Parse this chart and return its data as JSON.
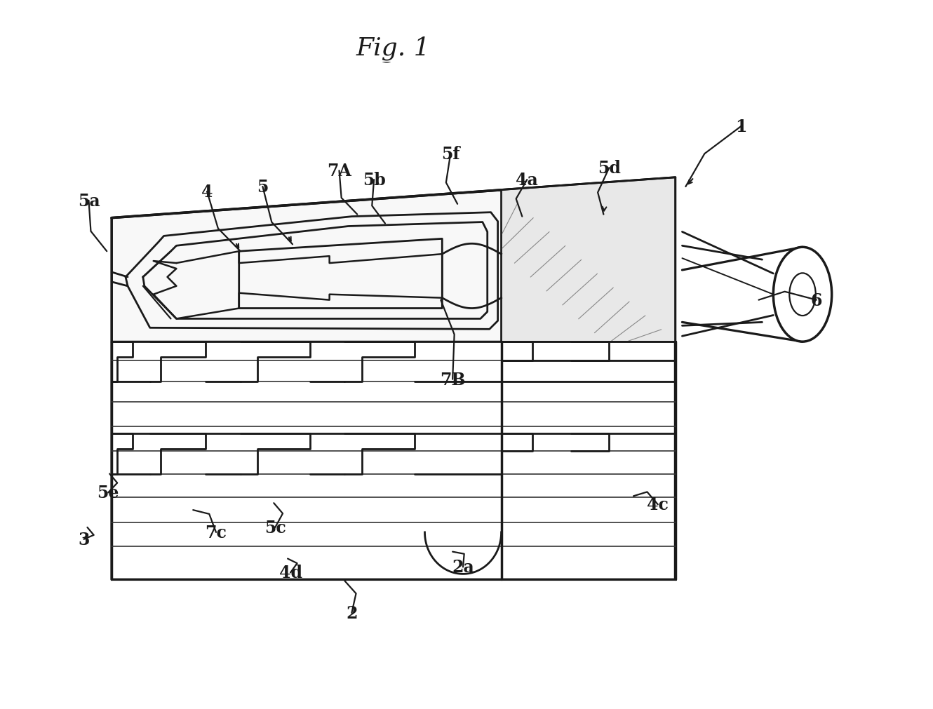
{
  "title": "Fig. 1",
  "bg_color": "#ffffff",
  "line_color": "#1a1a1a",
  "line_width": 2.0,
  "label_fontsize": 17,
  "title_fontsize": 26,
  "labels_info": [
    [
      "1",
      1060,
      178,
      980,
      265,
      true
    ],
    [
      "2",
      500,
      878,
      490,
      832,
      false
    ],
    [
      "2a",
      660,
      812,
      645,
      790,
      false
    ],
    [
      "3",
      115,
      772,
      120,
      755,
      false
    ],
    [
      "4",
      292,
      272,
      340,
      358,
      true
    ],
    [
      "4a",
      752,
      255,
      745,
      308,
      false
    ],
    [
      "4c",
      940,
      722,
      905,
      710,
      false
    ],
    [
      "4d",
      412,
      820,
      408,
      800,
      false
    ],
    [
      "5",
      372,
      265,
      415,
      348,
      true
    ],
    [
      "5a",
      122,
      285,
      148,
      358,
      false
    ],
    [
      "5b",
      532,
      255,
      548,
      318,
      false
    ],
    [
      "5c",
      390,
      755,
      388,
      720,
      false
    ],
    [
      "5d",
      870,
      238,
      862,
      305,
      true
    ],
    [
      "5e",
      150,
      705,
      152,
      678,
      false
    ],
    [
      "5f",
      642,
      218,
      652,
      290,
      false
    ],
    [
      "6",
      1168,
      428,
      1085,
      428,
      false
    ],
    [
      "7A",
      482,
      242,
      508,
      305,
      false
    ],
    [
      "7B",
      645,
      542,
      628,
      428,
      false
    ],
    [
      "7c",
      305,
      762,
      272,
      730,
      false
    ]
  ]
}
